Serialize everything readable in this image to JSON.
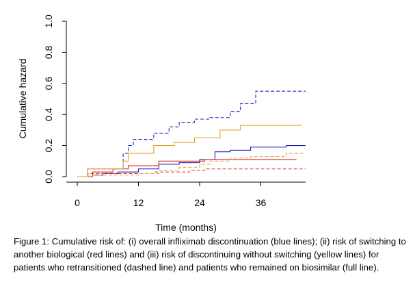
{
  "chart_data": {
    "type": "line",
    "step": true,
    "xlabel": "Time (months)",
    "ylabel": "Cumulative hazard",
    "xlim": [
      0,
      44
    ],
    "ylim": [
      0,
      1
    ],
    "xticks": [
      0,
      12,
      24,
      36
    ],
    "yticks": [
      0.0,
      0.2,
      0.4,
      0.6,
      0.8,
      1.0
    ],
    "ytick_labels": [
      "0.0",
      "0.2",
      "0.4",
      "0.6",
      "0.8",
      "1.0"
    ],
    "grid": false,
    "legend": "none",
    "series": [
      {
        "color": "#1f1fbf",
        "dash": true,
        "x": [
          0,
          2,
          9,
          10,
          11,
          15,
          18,
          20,
          23,
          26,
          30,
          32,
          35,
          38,
          45
        ],
        "y": [
          0,
          0.05,
          0.15,
          0.2,
          0.24,
          0.28,
          0.32,
          0.35,
          0.37,
          0.38,
          0.42,
          0.47,
          0.55,
          0.55,
          0.55
        ]
      },
      {
        "color": "#1f1fbf",
        "dash": false,
        "x": [
          0,
          3,
          5,
          8,
          12,
          16,
          20,
          24,
          27,
          30,
          34,
          38,
          41,
          45
        ],
        "y": [
          0,
          0.01,
          0.02,
          0.03,
          0.05,
          0.08,
          0.09,
          0.11,
          0.16,
          0.17,
          0.19,
          0.19,
          0.2,
          0.2
        ]
      },
      {
        "color": "#e84040",
        "dash": true,
        "x": [
          0,
          2,
          12,
          15,
          20,
          22,
          25,
          45
        ],
        "y": [
          0,
          0.02,
          0.02,
          0.03,
          0.03,
          0.04,
          0.05,
          0.05
        ]
      },
      {
        "color": "#dd2222",
        "dash": false,
        "x": [
          0,
          3,
          7,
          10,
          16,
          20,
          25,
          29,
          43
        ],
        "y": [
          0,
          0.03,
          0.05,
          0.07,
          0.1,
          0.1,
          0.11,
          0.11,
          0.11
        ]
      },
      {
        "color": "#f0a04b",
        "dash": true,
        "x": [
          0,
          2,
          7,
          12,
          16,
          20,
          24,
          26,
          30,
          34,
          38,
          41,
          45
        ],
        "y": [
          0,
          0.01,
          0.01,
          0.02,
          0.04,
          0.06,
          0.08,
          0.1,
          0.12,
          0.13,
          0.13,
          0.15,
          0.15
        ]
      },
      {
        "color": "#e8a020",
        "dash": false,
        "x": [
          0,
          2,
          9,
          10,
          15,
          19,
          23,
          28,
          32,
          37,
          41,
          44
        ],
        "y": [
          0,
          0.05,
          0.1,
          0.15,
          0.2,
          0.22,
          0.25,
          0.3,
          0.33,
          0.33,
          0.33,
          0.33
        ]
      }
    ]
  },
  "caption": "Figure 1: Cumulative risk of: (i) overall infliximab discontinuation (blue lines); (ii) risk of switching to another biological (red lines) and (iii) risk of discontinuing without switching (yellow lines) for patients who retransitioned (dashed line) and patients who remained on biosimilar (full line)."
}
